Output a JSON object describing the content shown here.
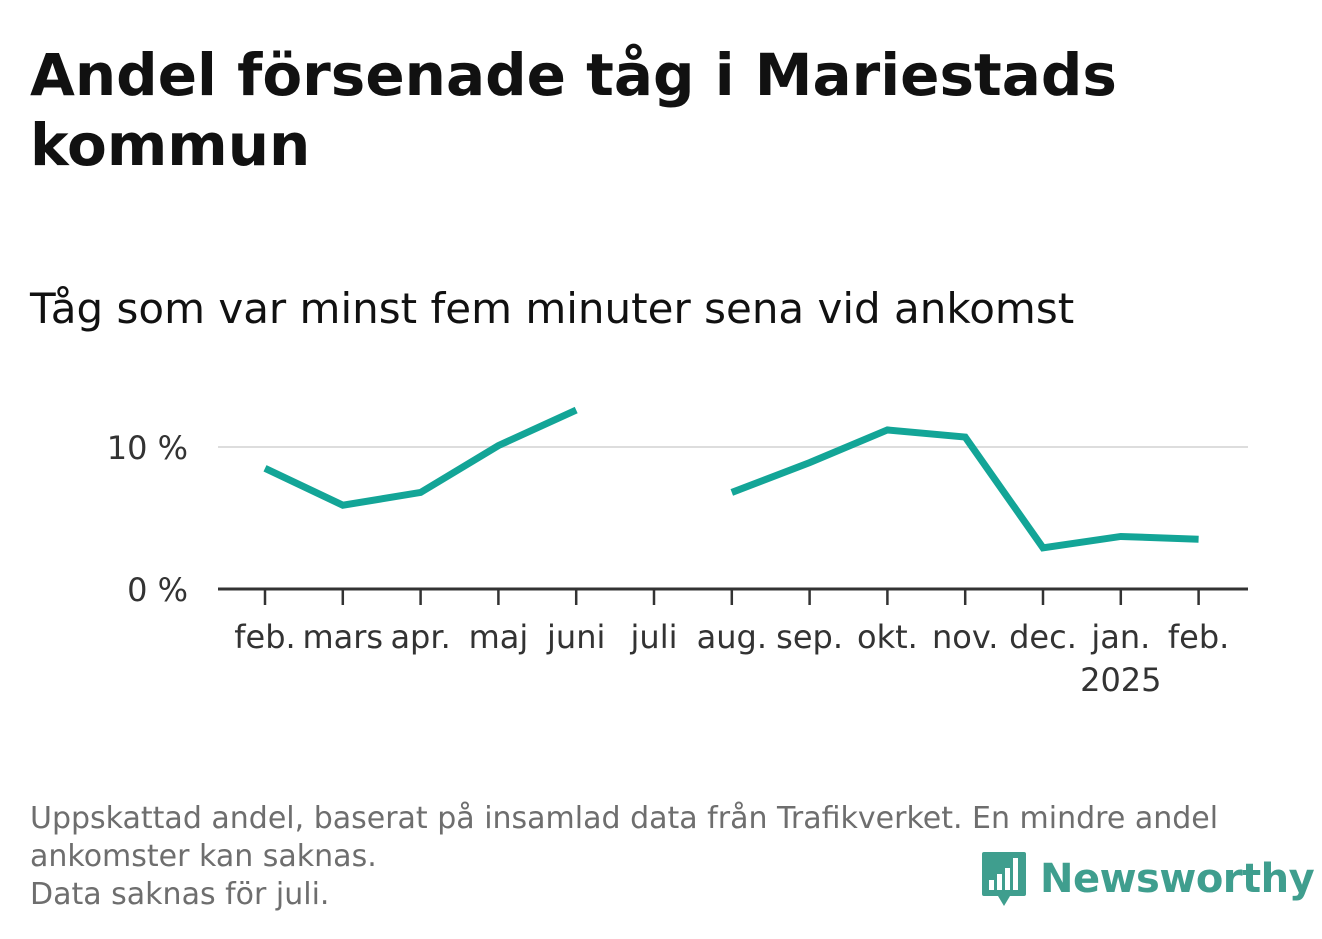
{
  "title": "Andel försenade tåg i Mariestads kommun",
  "subtitle": "Tåg som var minst fem minuter sena vid ankomst",
  "footnote": {
    "line1": "Uppskattad andel, baserat på insamlad data från Trafikverket. En mindre andel",
    "line2": "ankomster kan saknas.",
    "line3": "Data saknas för juli."
  },
  "brand": {
    "name": "Newsworthy",
    "icon": "newsworthy-logo-icon",
    "color": "#3f9e8e"
  },
  "chart_data": {
    "type": "line",
    "categories": [
      "feb.",
      "mars",
      "apr.",
      "maj",
      "juni",
      "juli",
      "aug.",
      "sep.",
      "okt.",
      "nov.",
      "dec.",
      "jan.",
      "feb."
    ],
    "category_sublabels": [
      "",
      "",
      "",
      "",
      "",
      "",
      "",
      "",
      "",
      "",
      "",
      "2025",
      ""
    ],
    "series": [
      {
        "values": [
          8.5,
          5.9,
          6.8,
          10.1,
          12.6,
          null,
          6.8,
          8.9,
          11.2,
          10.7,
          2.9,
          3.7,
          3.5
        ],
        "color": "#13a597"
      }
    ],
    "ylim": [
      0,
      13
    ],
    "yticks": [
      0,
      10
    ],
    "ytick_labels": [
      "0 %",
      "10 %"
    ],
    "grid": true,
    "legend": "none"
  }
}
